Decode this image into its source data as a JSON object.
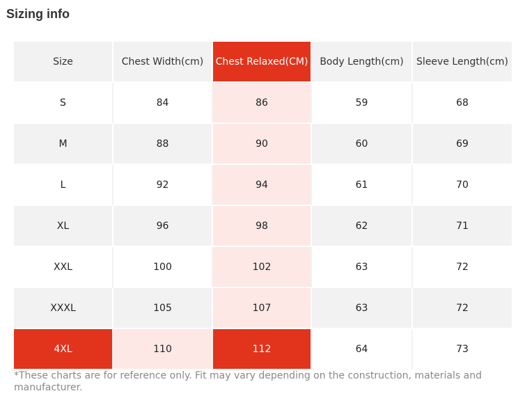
{
  "title": "Sizing info",
  "colors": {
    "highlight_strong": "#e2341d",
    "highlight_light": "#fde8e5",
    "row_gray": "#f2f2f2"
  },
  "table": {
    "headers": [
      "Size",
      "Chest Width(cm)",
      "Chest Relaxed(CM)",
      "Body Length(cm)",
      "Sleeve Length(cm)"
    ],
    "rows": [
      [
        "S",
        "84",
        "86",
        "59",
        "68"
      ],
      [
        "M",
        "88",
        "90",
        "60",
        "69"
      ],
      [
        "L",
        "92",
        "94",
        "61",
        "70"
      ],
      [
        "XL",
        "96",
        "98",
        "62",
        "71"
      ],
      [
        "XXL",
        "100",
        "102",
        "63",
        "72"
      ],
      [
        "XXXL",
        "105",
        "107",
        "63",
        "72"
      ],
      [
        "4XL",
        "110",
        "112",
        "64",
        "73"
      ]
    ]
  },
  "note": "*These charts are for reference only. Fit may vary depending on the construction, materials and manufacturer."
}
